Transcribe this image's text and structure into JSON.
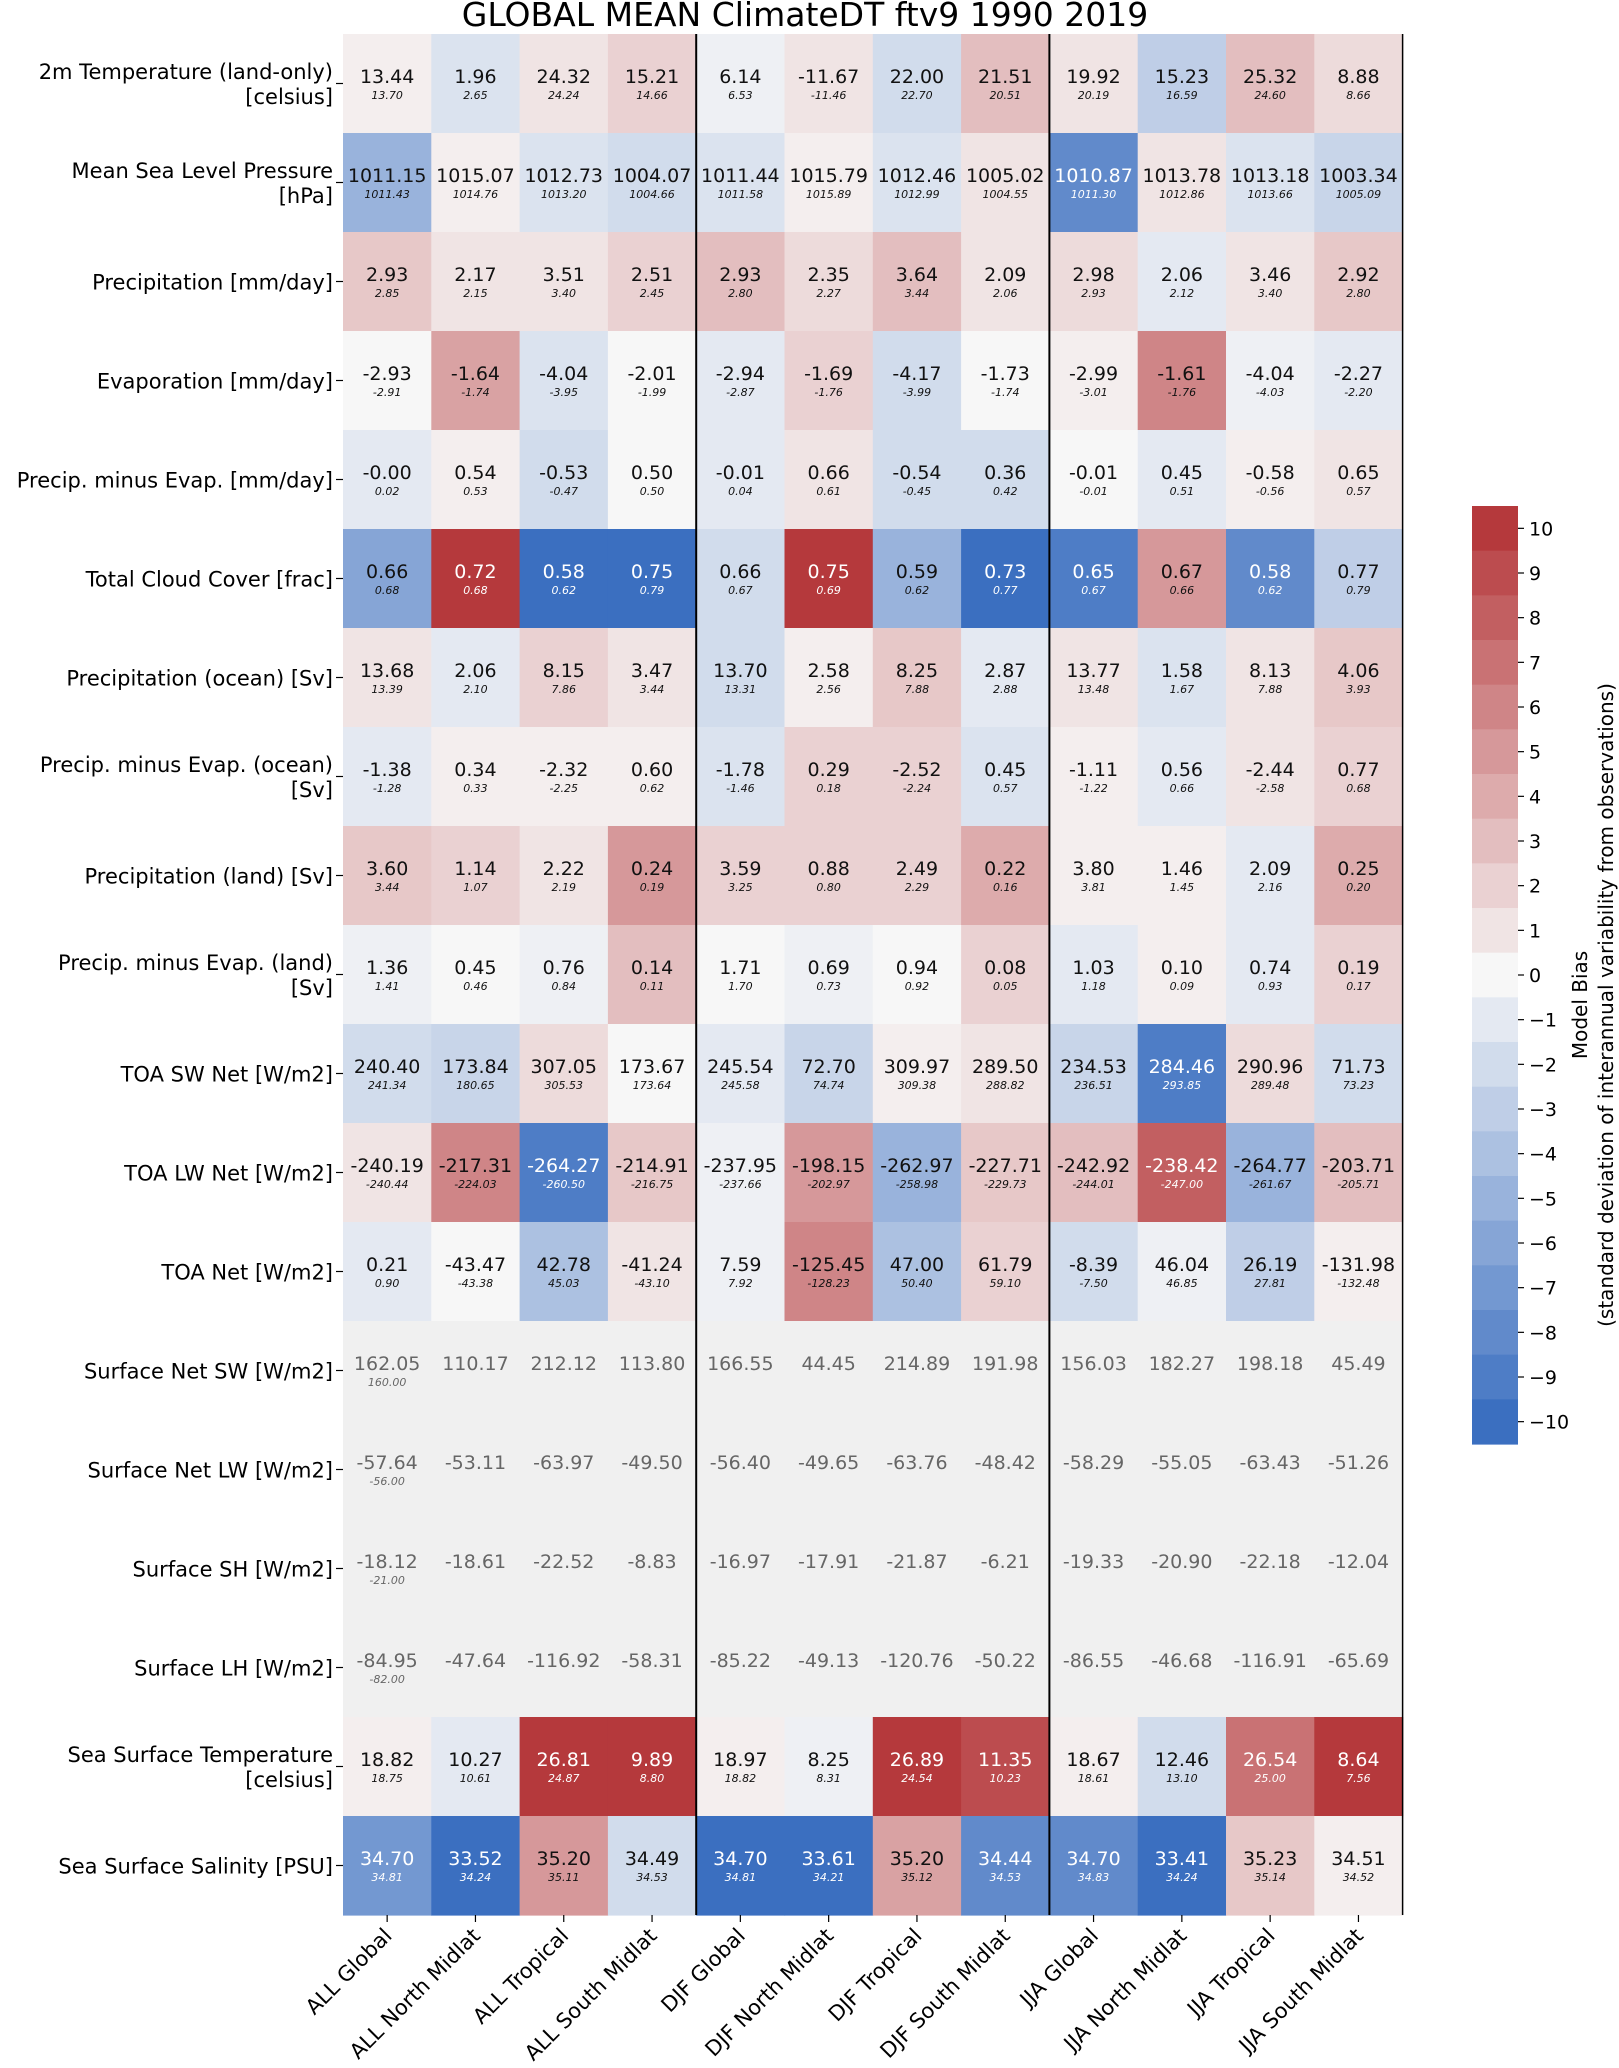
{
  "chart_data": {
    "type": "heatmap",
    "title": "GLOBAL MEAN ClimateDT ftv9 1990 2019",
    "columns": [
      "ALL Global",
      "ALL North Midlat",
      "ALL Tropical",
      "ALL South Midlat",
      "DJF Global",
      "DJF North Midlat",
      "DJF Tropical",
      "DJF South Midlat",
      "JJA Global",
      "JJA North Midlat",
      "JJA Tropical",
      "JJA South Midlat"
    ],
    "rows": [
      {
        "label": [
          "2m Temperature (land-only)",
          "[celsius]"
        ],
        "model": [
          "13.44",
          "1.96",
          "24.32",
          "15.21",
          "6.14",
          "-11.67",
          "22.00",
          "21.51",
          "19.92",
          "15.23",
          "25.32",
          "8.88"
        ],
        "obs": [
          "13.70",
          "2.65",
          "24.24",
          "14.66",
          "6.53",
          "-11.46",
          "22.70",
          "20.51",
          "20.19",
          "16.59",
          "24.60",
          "8.66"
        ],
        "bias": [
          0.5,
          -1.5,
          1,
          2,
          -0.5,
          1,
          -2,
          3,
          1,
          -3,
          3,
          1.5
        ]
      },
      {
        "label": [
          "Mean Sea Level Pressure",
          "[hPa]"
        ],
        "model": [
          "1011.15",
          "1015.07",
          "1012.73",
          "1004.07",
          "1011.44",
          "1015.79",
          "1012.46",
          "1005.02",
          "1010.87",
          "1013.78",
          "1013.18",
          "1003.34"
        ],
        "obs": [
          "1011.43",
          "1014.76",
          "1013.20",
          "1004.66",
          "1011.58",
          "1015.89",
          "1012.99",
          "1004.55",
          "1011.30",
          "1012.86",
          "1013.66",
          "1005.09"
        ],
        "bias": [
          -5,
          0.5,
          -1.5,
          -2,
          -1.5,
          0.5,
          -1.5,
          1,
          -8,
          1,
          -1.5,
          -2.5
        ]
      },
      {
        "label": [
          "Precipitation [mm/day]"
        ],
        "model": [
          "2.93",
          "2.17",
          "3.51",
          "2.51",
          "2.93",
          "2.35",
          "3.64",
          "2.09",
          "2.98",
          "2.06",
          "3.46",
          "2.92"
        ],
        "obs": [
          "2.85",
          "2.15",
          "3.40",
          "2.45",
          "2.80",
          "2.27",
          "3.44",
          "2.06",
          "2.93",
          "2.12",
          "3.40",
          "2.80"
        ],
        "bias": [
          2.5,
          1,
          1,
          2,
          3,
          1.5,
          3,
          1,
          1.5,
          -1,
          1,
          2.5
        ]
      },
      {
        "label": [
          "Evaporation [mm/day]"
        ],
        "model": [
          "-2.93",
          "-1.64",
          "-4.04",
          "-2.01",
          "-2.94",
          "-1.69",
          "-4.17",
          "-1.73",
          "-2.99",
          "-1.61",
          "-4.04",
          "-2.27"
        ],
        "obs": [
          "-2.91",
          "-1.74",
          "-3.95",
          "-1.99",
          "-2.87",
          "-1.76",
          "-3.99",
          "-1.74",
          "-3.01",
          "-1.76",
          "-4.03",
          "-2.20"
        ],
        "bias": [
          0,
          4.5,
          -1.5,
          0,
          -1,
          2,
          -2,
          0,
          0.5,
          6,
          -0.5,
          -1
        ]
      },
      {
        "label": [
          "Precip. minus Evap. [mm/day]"
        ],
        "model": [
          "-0.00",
          "0.54",
          "-0.53",
          "0.50",
          "-0.01",
          "0.66",
          "-0.54",
          "0.36",
          "-0.01",
          "0.45",
          "-0.58",
          "0.65"
        ],
        "obs": [
          "0.02",
          "0.53",
          "-0.47",
          "0.50",
          "0.04",
          "0.61",
          "-0.45",
          "0.42",
          "-0.01",
          "0.51",
          "-0.56",
          "0.57"
        ],
        "bias": [
          -1,
          0.5,
          -2,
          0,
          -1,
          1,
          -2,
          -2,
          0,
          -1,
          0.5,
          1
        ]
      },
      {
        "label": [
          "Total Cloud Cover [frac]"
        ],
        "model": [
          "0.66",
          "0.72",
          "0.58",
          "0.75",
          "0.66",
          "0.75",
          "0.59",
          "0.73",
          "0.65",
          "0.67",
          "0.58",
          "0.77"
        ],
        "obs": [
          "0.68",
          "0.68",
          "0.62",
          "0.79",
          "0.67",
          "0.69",
          "0.62",
          "0.77",
          "0.67",
          "0.66",
          "0.62",
          "0.79"
        ],
        "bias": [
          -6,
          10,
          -10,
          -10,
          -2,
          10,
          -5,
          -10,
          -9,
          5,
          -8,
          -3
        ]
      },
      {
        "label": [
          "Precipitation (ocean) [Sv]"
        ],
        "model": [
          "13.68",
          "2.06",
          "8.15",
          "3.47",
          "13.70",
          "2.58",
          "8.25",
          "2.87",
          "13.77",
          "1.58",
          "8.13",
          "4.06"
        ],
        "obs": [
          "13.39",
          "2.10",
          "7.86",
          "3.44",
          "13.31",
          "2.56",
          "7.88",
          "2.88",
          "13.48",
          "1.67",
          "7.88",
          "3.93"
        ],
        "bias": [
          1,
          -1,
          2,
          1,
          -2,
          0.5,
          2.5,
          -1,
          1,
          -1.5,
          1,
          2.5
        ]
      },
      {
        "label": [
          "Precip. minus Evap. (ocean)",
          "[Sv]"
        ],
        "model": [
          "-1.38",
          "0.34",
          "-2.32",
          "0.60",
          "-1.78",
          "0.29",
          "-2.52",
          "0.45",
          "-1.11",
          "0.56",
          "-2.44",
          "0.77"
        ],
        "obs": [
          "-1.28",
          "0.33",
          "-2.25",
          "0.62",
          "-1.46",
          "0.18",
          "-2.24",
          "0.57",
          "-1.22",
          "0.66",
          "-2.58",
          "0.68"
        ],
        "bias": [
          -1,
          0.5,
          0.5,
          0.5,
          -1.5,
          2,
          2,
          -1.5,
          0.5,
          -1,
          1,
          2
        ]
      },
      {
        "label": [
          "Precipitation (land) [Sv]"
        ],
        "model": [
          "3.60",
          "1.14",
          "2.22",
          "0.24",
          "3.59",
          "0.88",
          "2.49",
          "0.22",
          "3.80",
          "1.46",
          "2.09",
          "0.25"
        ],
        "obs": [
          "3.44",
          "1.07",
          "2.19",
          "0.19",
          "3.25",
          "0.80",
          "2.29",
          "0.16",
          "3.81",
          "1.45",
          "2.16",
          "0.20"
        ],
        "bias": [
          2.5,
          2,
          1,
          5,
          2,
          2,
          2,
          4,
          0.5,
          0.5,
          -1,
          4
        ]
      },
      {
        "label": [
          "Precip. minus Evap. (land)",
          "[Sv]"
        ],
        "model": [
          "1.36",
          "0.45",
          "0.76",
          "0.14",
          "1.71",
          "0.69",
          "0.94",
          "0.08",
          "1.03",
          "0.10",
          "0.74",
          "0.19"
        ],
        "obs": [
          "1.41",
          "0.46",
          "0.84",
          "0.11",
          "1.70",
          "0.73",
          "0.92",
          "0.05",
          "1.18",
          "0.09",
          "0.93",
          "0.17"
        ],
        "bias": [
          -0.5,
          0,
          -0.5,
          3,
          0,
          -0.5,
          0,
          2,
          -1,
          0.5,
          -1,
          2
        ]
      },
      {
        "label": [
          "TOA SW Net [W/m2]"
        ],
        "model": [
          "240.40",
          "173.84",
          "307.05",
          "173.67",
          "245.54",
          "72.70",
          "309.97",
          "289.50",
          "234.53",
          "284.46",
          "290.96",
          "71.73"
        ],
        "obs": [
          "241.34",
          "180.65",
          "305.53",
          "173.64",
          "245.58",
          "74.74",
          "309.38",
          "288.82",
          "236.51",
          "293.85",
          "289.48",
          "73.23"
        ],
        "bias": [
          -2,
          -2.5,
          1.5,
          0,
          -1,
          -2.5,
          0.5,
          1,
          -2.5,
          -9,
          1.5,
          -2
        ]
      },
      {
        "label": [
          "TOA LW Net [W/m2]"
        ],
        "model": [
          "-240.19",
          "-217.31",
          "-264.27",
          "-214.91",
          "-237.95",
          "-198.15",
          "-262.97",
          "-227.71",
          "-242.92",
          "-238.42",
          "-264.77",
          "-203.71"
        ],
        "obs": [
          "-240.44",
          "-224.03",
          "-260.50",
          "-216.75",
          "-237.66",
          "-202.97",
          "-258.98",
          "-229.73",
          "-244.01",
          "-247.00",
          "-261.67",
          "-205.71"
        ],
        "bias": [
          1,
          6,
          -9,
          2.5,
          -0.5,
          5,
          -5,
          2.5,
          3,
          8,
          -5,
          3
        ]
      },
      {
        "label": [
          "TOA Net [W/m2]"
        ],
        "model": [
          "0.21",
          "-43.47",
          "42.78",
          "-41.24",
          "7.59",
          "-125.45",
          "47.00",
          "61.79",
          "-8.39",
          "46.04",
          "26.19",
          "-131.98"
        ],
        "obs": [
          "0.90",
          "-43.38",
          "45.03",
          "-43.10",
          "7.92",
          "-128.23",
          "50.40",
          "59.10",
          "-7.50",
          "46.85",
          "27.81",
          "-132.48"
        ],
        "bias": [
          -1,
          0,
          -4,
          1,
          -0.5,
          6,
          -4,
          2,
          -2,
          -0.5,
          -3,
          0.5
        ]
      },
      {
        "label": [
          "Surface Net SW [W/m2]"
        ],
        "model": [
          "162.05",
          "110.17",
          "212.12",
          "113.80",
          "166.55",
          "44.45",
          "214.89",
          "191.98",
          "156.03",
          "182.27",
          "198.18",
          "45.49"
        ],
        "obs": [
          "160.00",
          "",
          "",
          "",
          "",
          "",
          "",
          "",
          "",
          "",
          "",
          ""
        ],
        "bias": [
          null,
          null,
          null,
          null,
          null,
          null,
          null,
          null,
          null,
          null,
          null,
          null
        ]
      },
      {
        "label": [
          "Surface Net LW [W/m2]"
        ],
        "model": [
          "-57.64",
          "-53.11",
          "-63.97",
          "-49.50",
          "-56.40",
          "-49.65",
          "-63.76",
          "-48.42",
          "-58.29",
          "-55.05",
          "-63.43",
          "-51.26"
        ],
        "obs": [
          "-56.00",
          "",
          "",
          "",
          "",
          "",
          "",
          "",
          "",
          "",
          "",
          ""
        ],
        "bias": [
          null,
          null,
          null,
          null,
          null,
          null,
          null,
          null,
          null,
          null,
          null,
          null
        ]
      },
      {
        "label": [
          "Surface SH [W/m2]"
        ],
        "model": [
          "-18.12",
          "-18.61",
          "-22.52",
          "-8.83",
          "-16.97",
          "-17.91",
          "-21.87",
          "-6.21",
          "-19.33",
          "-20.90",
          "-22.18",
          "-12.04"
        ],
        "obs": [
          "-21.00",
          "",
          "",
          "",
          "",
          "",
          "",
          "",
          "",
          "",
          "",
          ""
        ],
        "bias": [
          null,
          null,
          null,
          null,
          null,
          null,
          null,
          null,
          null,
          null,
          null,
          null
        ]
      },
      {
        "label": [
          "Surface LH [W/m2]"
        ],
        "model": [
          "-84.95",
          "-47.64",
          "-116.92",
          "-58.31",
          "-85.22",
          "-49.13",
          "-120.76",
          "-50.22",
          "-86.55",
          "-46.68",
          "-116.91",
          "-65.69"
        ],
        "obs": [
          "-82.00",
          "",
          "",
          "",
          "",
          "",
          "",
          "",
          "",
          "",
          "",
          ""
        ],
        "bias": [
          null,
          null,
          null,
          null,
          null,
          null,
          null,
          null,
          null,
          null,
          null,
          null
        ]
      },
      {
        "label": [
          "Sea Surface Temperature",
          "[celsius]"
        ],
        "model": [
          "18.82",
          "10.27",
          "26.81",
          "9.89",
          "18.97",
          "8.25",
          "26.89",
          "11.35",
          "18.67",
          "12.46",
          "26.54",
          "8.64"
        ],
        "obs": [
          "18.75",
          "10.61",
          "24.87",
          "8.80",
          "18.82",
          "8.31",
          "24.54",
          "10.23",
          "18.61",
          "13.10",
          "25.00",
          "7.56"
        ],
        "bias": [
          0.5,
          -1,
          10,
          10,
          0.5,
          -0.5,
          10,
          9,
          0.5,
          -2,
          7,
          10
        ]
      },
      {
        "label": [
          "Sea Surface Salinity [PSU]"
        ],
        "model": [
          "34.70",
          "33.52",
          "35.20",
          "34.49",
          "34.70",
          "33.61",
          "35.20",
          "34.44",
          "34.70",
          "33.41",
          "35.23",
          "34.51"
        ],
        "obs": [
          "34.81",
          "34.24",
          "35.11",
          "34.53",
          "34.81",
          "34.21",
          "35.12",
          "34.53",
          "34.83",
          "34.24",
          "35.14",
          "34.52"
        ],
        "bias": [
          -7,
          -10,
          5,
          -2,
          -10,
          -10,
          4.5,
          -8,
          -8,
          -10,
          2.5,
          0.5
        ]
      }
    ],
    "colorbar": {
      "label": "Model Bias",
      "sublabel": "(standard deviation of interannual variability from observations)",
      "range": [
        -10,
        10
      ],
      "ticks": [
        10,
        9,
        8,
        7,
        6,
        5,
        4,
        3,
        2,
        1,
        0,
        -1,
        -2,
        -3,
        -4,
        -5,
        -6,
        -7,
        -8,
        -9,
        -10
      ],
      "tick_labels": [
        "10",
        "9",
        "8",
        "7",
        "6",
        "5",
        "4",
        "3",
        "2",
        "1",
        "0",
        "−1",
        "−2",
        "−3",
        "−4",
        "−5",
        "−6",
        "−7",
        "−8",
        "−9",
        "−10"
      ]
    },
    "group_separators_after_columns": [
      4,
      8
    ],
    "colors": {
      "no_data": "#f0f0f0",
      "neutral": "#f7f7f7",
      "negative_max": "#3b6fc0",
      "positive_max": "#b5393c",
      "grid_line": "#000000"
    }
  }
}
